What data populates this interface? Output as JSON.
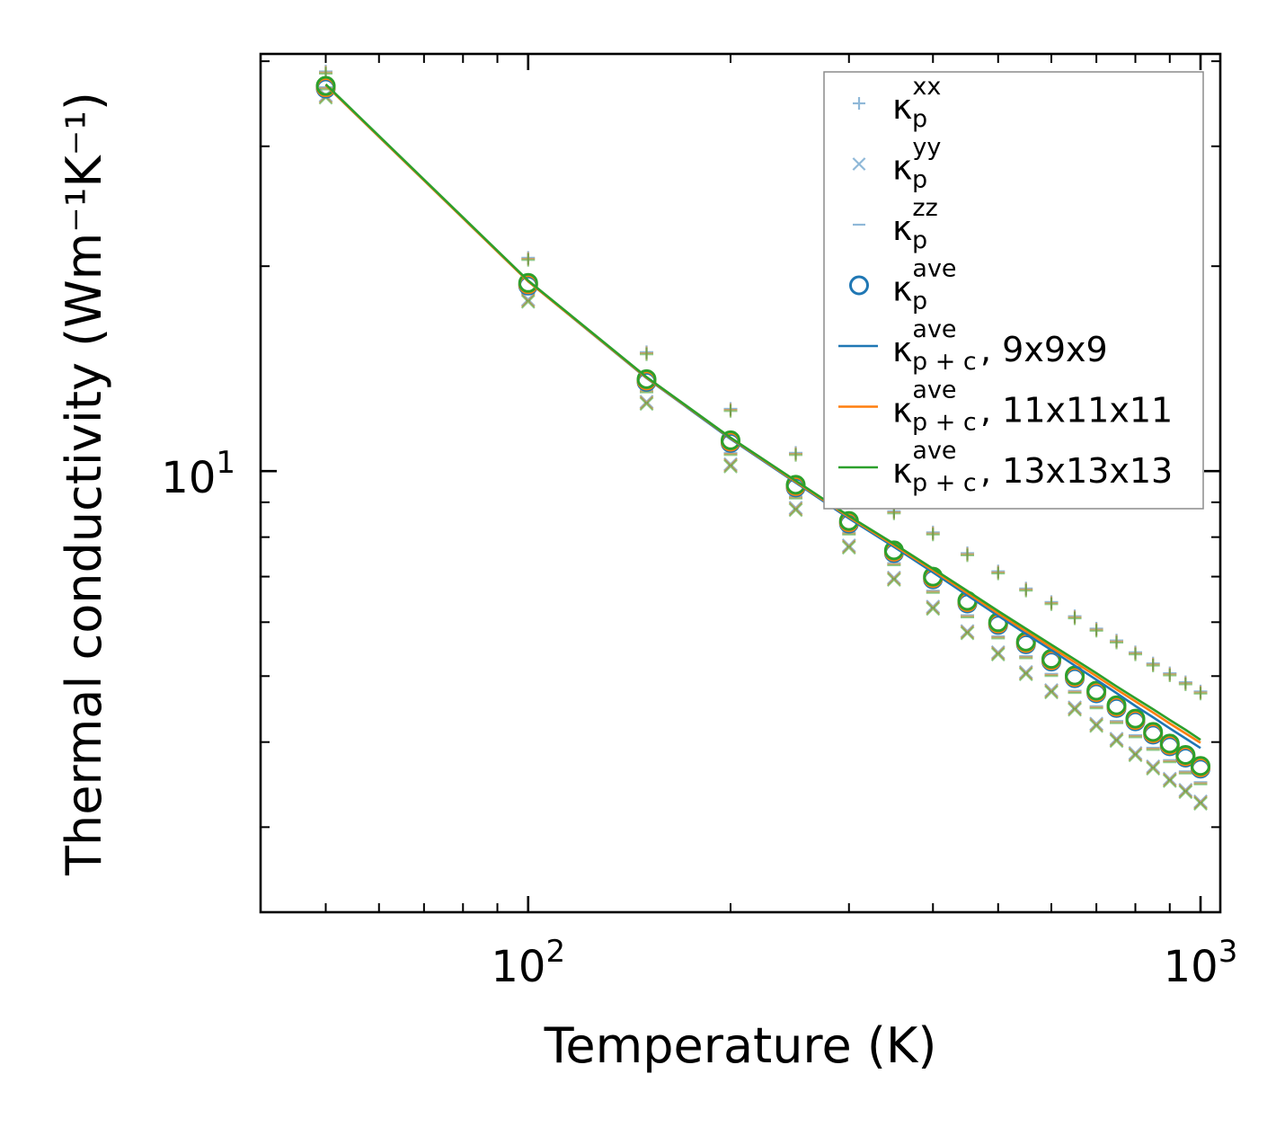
{
  "chart_data": {
    "type": "scatter",
    "title": "",
    "xlabel": "Temperature (K)",
    "ylabel": "Thermal conductivity (Wm⁻¹K⁻¹)",
    "xscale": "log",
    "yscale": "log",
    "xlim": [
      40,
      1070
    ],
    "ylim": [
      2.25,
      41
    ],
    "x_tick_labels": [
      {
        "value": 100,
        "base": "10",
        "exp": "2"
      },
      {
        "value": 1000,
        "base": "10",
        "exp": "3"
      }
    ],
    "y_tick_labels": [
      {
        "value": 10,
        "base": "10",
        "exp": "1"
      }
    ],
    "legend_position": "top-right",
    "colors": {
      "blue": "#1f77b4",
      "orange": "#ff7f0e",
      "green": "#2ca02c",
      "light": "#8fb8d8"
    },
    "temperatures": [
      50,
      100,
      150,
      200,
      250,
      300,
      350,
      400,
      450,
      500,
      550,
      600,
      650,
      700,
      750,
      800,
      850,
      900,
      950,
      1000
    ],
    "series": [
      {
        "name": "kp_xx",
        "marker": "plus",
        "values": [
          38.5,
          20.5,
          14.9,
          12.3,
          10.6,
          9.5,
          8.7,
          8.1,
          7.55,
          7.1,
          6.7,
          6.4,
          6.1,
          5.85,
          5.62,
          5.4,
          5.2,
          5.03,
          4.88,
          4.73
        ]
      },
      {
        "name": "kp_yy",
        "marker": "x",
        "values": [
          35.5,
          17.8,
          12.6,
          10.2,
          8.8,
          7.75,
          6.95,
          6.3,
          5.8,
          5.4,
          5.05,
          4.75,
          4.48,
          4.24,
          4.03,
          3.84,
          3.67,
          3.52,
          3.39,
          3.26
        ]
      },
      {
        "name": "kp_zz",
        "marker": "dash",
        "values": [
          36.5,
          18.3,
          13.1,
          10.6,
          9.15,
          8.1,
          7.3,
          6.65,
          6.12,
          5.7,
          5.33,
          5.02,
          4.74,
          4.5,
          4.28,
          4.08,
          3.91,
          3.75,
          3.61,
          3.48
        ]
      },
      {
        "name": "kp_ave",
        "marker": "circle",
        "values": [
          36.8,
          18.9,
          13.65,
          11.1,
          9.55,
          8.45,
          7.65,
          7.0,
          6.45,
          6.0,
          5.62,
          5.3,
          5.01,
          4.76,
          4.53,
          4.33,
          4.14,
          3.98,
          3.83,
          3.69
        ]
      },
      {
        "name": "kpc_ave_9x9x9",
        "marker": "line",
        "color": "blue",
        "values": [
          36.9,
          19.0,
          13.7,
          11.15,
          9.62,
          8.52,
          7.74,
          7.1,
          6.57,
          6.13,
          5.77,
          5.46,
          5.18,
          4.94,
          4.72,
          4.52,
          4.35,
          4.19,
          4.05,
          3.92
        ]
      },
      {
        "name": "kpc_ave_11x11x11",
        "marker": "line",
        "color": "orange",
        "values": [
          36.9,
          19.0,
          13.72,
          11.18,
          9.65,
          8.56,
          7.78,
          7.15,
          6.62,
          6.18,
          5.82,
          5.51,
          5.24,
          5.0,
          4.78,
          4.59,
          4.42,
          4.26,
          4.12,
          3.99
        ]
      },
      {
        "name": "kpc_ave_13x13x13",
        "marker": "line",
        "color": "green",
        "values": [
          37.0,
          19.05,
          13.75,
          11.2,
          9.68,
          8.59,
          7.82,
          7.19,
          6.67,
          6.23,
          5.87,
          5.56,
          5.29,
          5.05,
          4.83,
          4.64,
          4.47,
          4.31,
          4.17,
          4.03
        ]
      }
    ],
    "legend": [
      {
        "marker": "plus",
        "color": "light",
        "label": "κ",
        "sub": "p",
        "sup": "xx",
        "tail": ""
      },
      {
        "marker": "x",
        "color": "light",
        "label": "κ",
        "sub": "p",
        "sup": "yy",
        "tail": ""
      },
      {
        "marker": "dash",
        "color": "light",
        "label": "κ",
        "sub": "p",
        "sup": "zz",
        "tail": ""
      },
      {
        "marker": "circle",
        "color": "blue",
        "label": "κ",
        "sub": "p",
        "sup": "ave",
        "tail": ""
      },
      {
        "marker": "line",
        "color": "blue",
        "label": "κ",
        "sub": "p + c",
        "sup": "ave",
        "tail": ", 9x9x9"
      },
      {
        "marker": "line",
        "color": "orange",
        "label": "κ",
        "sub": "p + c",
        "sup": "ave",
        "tail": ", 11x11x11"
      },
      {
        "marker": "line",
        "color": "green",
        "label": "κ",
        "sub": "p + c",
        "sup": "ave",
        "tail": ", 13x13x13"
      }
    ]
  }
}
